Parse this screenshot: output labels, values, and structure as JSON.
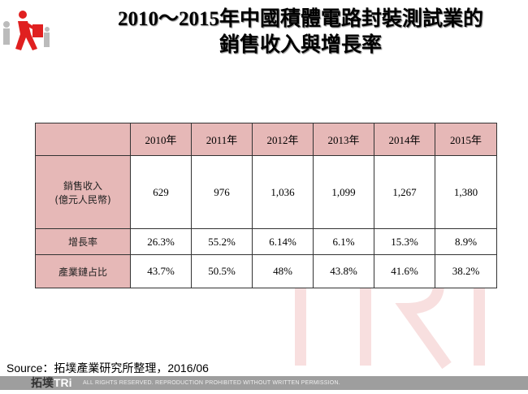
{
  "title": {
    "line1": "2010～2015年中國積體電路封裝測試業的",
    "line2": "銷售收入與增長率"
  },
  "table": {
    "headers": [
      "",
      "2010年",
      "2011年",
      "2012年",
      "2013年",
      "2014年",
      "2015年"
    ],
    "rows": [
      {
        "label_line1": "銷售收入",
        "label_line2": "(億元人民幣)",
        "values": [
          "629",
          "976",
          "1,036",
          "1,099",
          "1,267",
          "1,380"
        ]
      },
      {
        "label_line1": "增長率",
        "label_line2": "",
        "values": [
          "26.3%",
          "55.2%",
          "6.14%",
          "6.1%",
          "15.3%",
          "8.9%"
        ]
      },
      {
        "label_line1": "產業鏈占比",
        "label_line2": "",
        "values": [
          "43.7%",
          "50.5%",
          "48%",
          "43.8%",
          "41.6%",
          "38.2%"
        ]
      }
    ],
    "header_color": "#e6b8b7"
  },
  "source": "Source：拓墣產業研究所整理，2016/06",
  "footer": {
    "brand": "拓墣",
    "brand_latin": "TRi",
    "notice": "ALL RIGHTS RESERVED. REPRODUCTION PROHIBITED WITHOUT WRITTEN PERMISSION."
  },
  "logo_icon": "walking-person-with-briefcase-icon",
  "accent": "#e02020"
}
